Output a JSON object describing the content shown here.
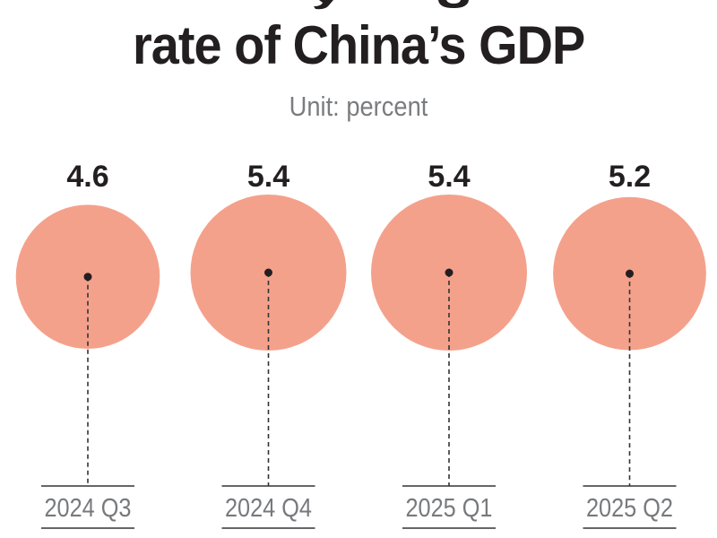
{
  "title": {
    "visible_line": "rate of China’s GDP"
  },
  "subtitle": "Unit: percent",
  "colors": {
    "bubble": "#f4a18c",
    "text_dark": "#231f20",
    "text_gray": "#77797c",
    "rule": "#333333"
  },
  "chart_data": {
    "type": "bubble",
    "title": "rate of China’s GDP",
    "subtitle": "Unit: percent",
    "unit": "percent",
    "categories": [
      "2024 Q3",
      "2024 Q4",
      "2025 Q1",
      "2025 Q2"
    ],
    "values": [
      4.6,
      5.4,
      5.4,
      5.2
    ],
    "value_labels": [
      "4.6",
      "5.4",
      "5.4",
      "5.2"
    ],
    "xlabel": "",
    "ylabel": "",
    "grid": false,
    "legend": "none"
  }
}
